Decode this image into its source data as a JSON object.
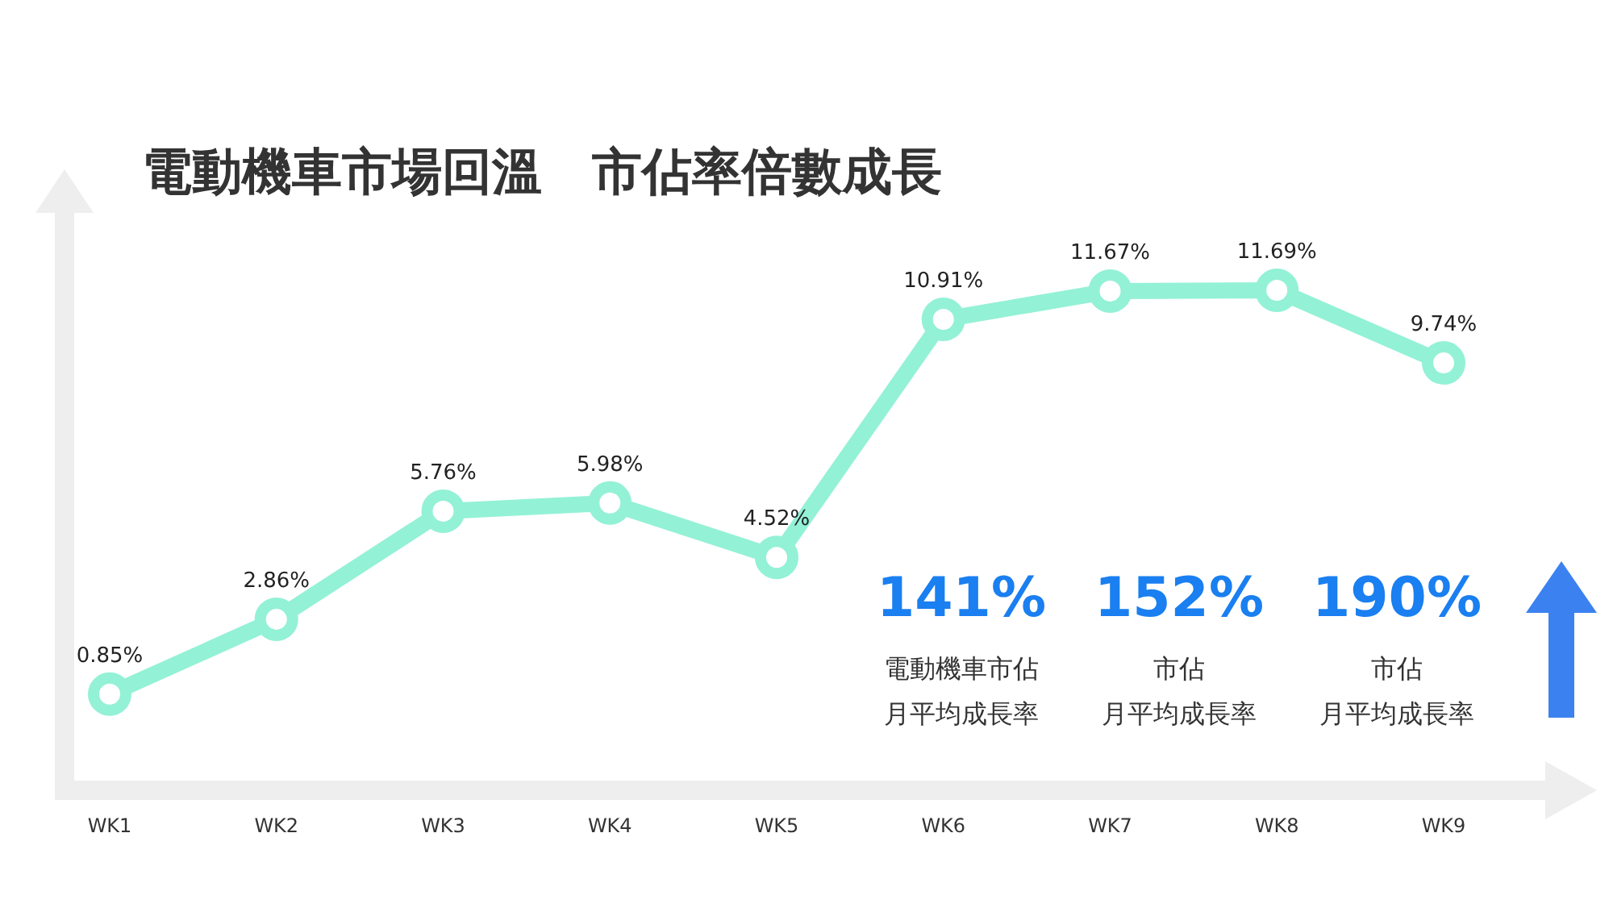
{
  "chart_data": {
    "type": "line",
    "title": "電動機車市場回溫　市佔率倍數成長",
    "categories": [
      "WK1",
      "WK2",
      "WK3",
      "WK4",
      "WK5",
      "WK6",
      "WK7",
      "WK8",
      "WK9"
    ],
    "values": [
      0.85,
      2.86,
      5.76,
      5.98,
      4.52,
      10.91,
      11.67,
      11.69,
      9.74
    ],
    "value_labels": [
      "0.85%",
      "2.86%",
      "5.76%",
      "5.98%",
      "4.52%",
      "10.91%",
      "11.67%",
      "11.69%",
      "9.74%"
    ],
    "color": "#93f1d6",
    "marker": "circle",
    "annotations": [
      "141%",
      "電動機車市佔",
      "月平均成長率",
      "152%",
      "市佔",
      "月平均成長率",
      "190%",
      "市佔",
      "月平均成長率"
    ]
  }
}
